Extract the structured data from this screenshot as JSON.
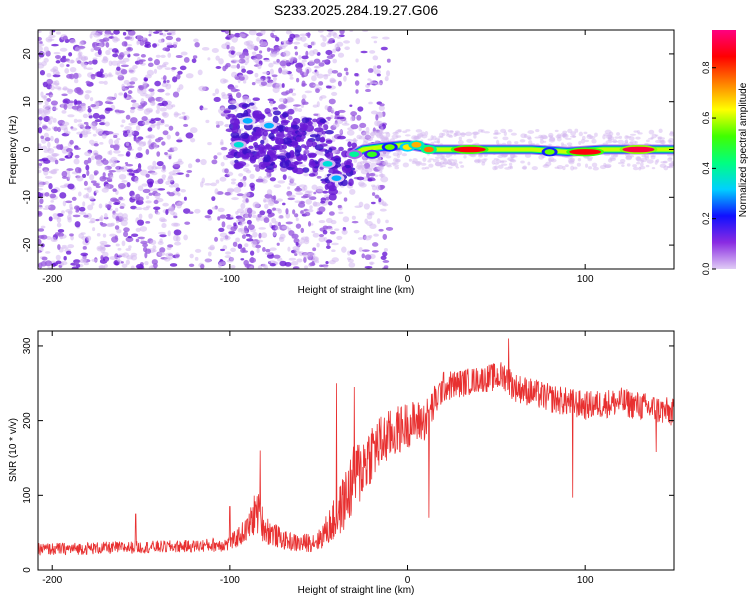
{
  "figure_title": "S233.2025.284.19.27.G06",
  "colors": {
    "snr_line": "#e83030",
    "scatter_faint": "#d4b8f0",
    "scatter_mid": "#9a5de0",
    "scatter_strong": "#6a1ad6"
  },
  "chart_data": [
    {
      "type": "heatmap",
      "title": "S233.2025.284.19.27.G06",
      "xlabel": "Height of straight line (km)",
      "ylabel": "Frequency (Hz)",
      "xlim": [
        -208,
        150
      ],
      "ylim": [
        -25,
        25
      ],
      "x_ticks": [
        -200,
        -100,
        0,
        100
      ],
      "y_ticks": [
        -20,
        -10,
        0,
        10,
        20
      ],
      "colorbar": {
        "label": "Normalized spectral amplitude",
        "range": [
          0,
          0.95
        ],
        "ticks": [
          "0.0",
          "0.2",
          "0.4",
          "0.6",
          "0.8"
        ],
        "tick_values": [
          0.0,
          0.2,
          0.4,
          0.6,
          0.8
        ],
        "colormap_stops": [
          "#e0ccf5",
          "#8a2be2",
          "#1010ff",
          "#00d0ff",
          "#00ff80",
          "#40ff00",
          "#ffff00",
          "#ff8000",
          "#ff0000",
          "#ff0080"
        ]
      },
      "noise_region_km": [
        -208,
        -30
      ],
      "signal_trace": [
        {
          "x": -100,
          "y": 3
        },
        {
          "x": -95,
          "y": 2
        },
        {
          "x": -90,
          "y": 4
        },
        {
          "x": -85,
          "y": 3
        },
        {
          "x": -80,
          "y": 1
        },
        {
          "x": -70,
          "y": 2
        },
        {
          "x": -60,
          "y": 1
        },
        {
          "x": -50,
          "y": 0
        },
        {
          "x": -45,
          "y": -2
        },
        {
          "x": -40,
          "y": -4
        },
        {
          "x": -35,
          "y": -2
        },
        {
          "x": -30,
          "y": -1
        },
        {
          "x": -25,
          "y": 0
        },
        {
          "x": -15,
          "y": 0.5
        },
        {
          "x": 0,
          "y": 1
        },
        {
          "x": 15,
          "y": 0
        },
        {
          "x": 30,
          "y": 0
        },
        {
          "x": 50,
          "y": 0
        },
        {
          "x": 70,
          "y": 0
        },
        {
          "x": 90,
          "y": -0.5
        },
        {
          "x": 110,
          "y": 0
        },
        {
          "x": 130,
          "y": 0
        },
        {
          "x": 150,
          "y": 0
        }
      ],
      "peak_blobs": [
        {
          "x": -95,
          "y": 1,
          "amp": 0.35
        },
        {
          "x": -90,
          "y": 6,
          "amp": 0.3
        },
        {
          "x": -78,
          "y": 5,
          "amp": 0.3
        },
        {
          "x": -45,
          "y": -3,
          "amp": 0.35
        },
        {
          "x": -40,
          "y": -6,
          "amp": 0.3
        },
        {
          "x": -30,
          "y": -1,
          "amp": 0.4
        },
        {
          "x": -20,
          "y": -1,
          "amp": 0.5
        },
        {
          "x": -10,
          "y": 0.5,
          "amp": 0.55
        },
        {
          "x": 0,
          "y": 0.5,
          "amp": 0.65
        },
        {
          "x": 5,
          "y": 1,
          "amp": 0.7
        },
        {
          "x": 12,
          "y": 0,
          "amp": 0.75
        },
        {
          "x": 35,
          "y": 0,
          "amp": 0.85
        },
        {
          "x": 80,
          "y": -0.5,
          "amp": 0.55
        },
        {
          "x": 100,
          "y": -0.5,
          "amp": 0.85
        },
        {
          "x": 130,
          "y": 0,
          "amp": 0.9
        }
      ]
    },
    {
      "type": "line",
      "xlabel": "Height of straight line (km)",
      "ylabel": "SNR (10 * v/v)",
      "xlim": [
        -208,
        150
      ],
      "ylim": [
        0,
        320
      ],
      "x_ticks": [
        -200,
        -100,
        0,
        100
      ],
      "y_ticks": [
        0,
        100,
        200,
        300
      ],
      "series": [
        {
          "name": "SNR",
          "envelope": {
            "x": [
              -208,
              -200,
              -160,
              -120,
              -100,
              -90,
              -85,
              -80,
              -70,
              -60,
              -50,
              -40,
              -30,
              -20,
              -10,
              0,
              10,
              20,
              40,
              55,
              60,
              80,
              100,
              120,
              140,
              150
            ],
            "mean": [
              28,
              28,
              30,
              32,
              35,
              55,
              80,
              55,
              40,
              35,
              40,
              70,
              120,
              160,
              180,
              195,
              200,
              245,
              255,
              260,
              245,
              230,
              220,
              225,
              215,
              210
            ],
            "spread": [
              12,
              12,
              12,
              12,
              15,
              25,
              45,
              30,
              18,
              18,
              20,
              45,
              70,
              60,
              50,
              45,
              40,
              30,
              25,
              30,
              28,
              28,
              28,
              28,
              28,
              28
            ]
          },
          "spikes": [
            {
              "x": -153,
              "y": 75
            },
            {
              "x": -100,
              "y": 85
            },
            {
              "x": -83,
              "y": 160
            },
            {
              "x": -40,
              "y": 250
            },
            {
              "x": -30,
              "y": 245
            },
            {
              "x": 12,
              "y": 70
            },
            {
              "x": 57,
              "y": 310
            },
            {
              "x": 93,
              "y": 97
            },
            {
              "x": 140,
              "y": 158
            }
          ]
        }
      ]
    }
  ]
}
